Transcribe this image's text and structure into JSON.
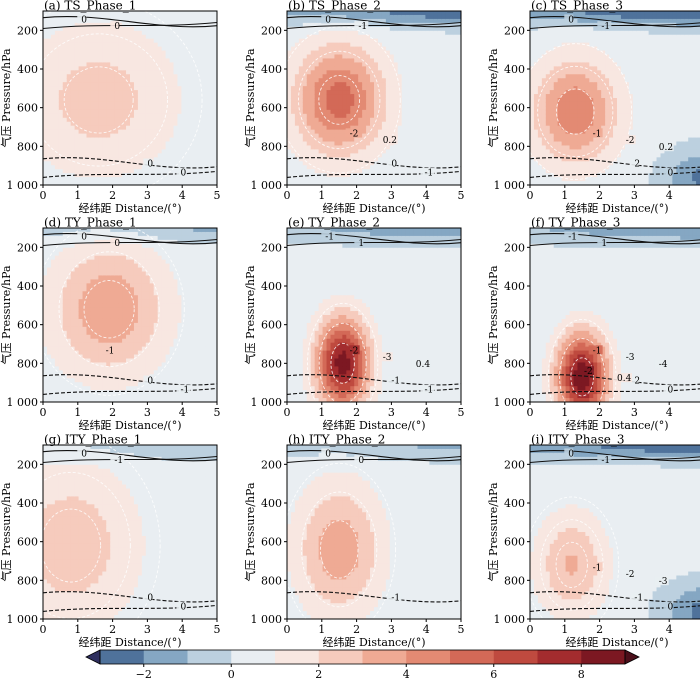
{
  "chart_data": {
    "type": "contour-panels",
    "layout": {
      "rows": 3,
      "cols": 3
    },
    "xlabel": "经纬距 Distance/(°)",
    "ylabel": "气压 Pressure/hPa",
    "xlim": [
      0,
      5
    ],
    "ylim": [
      1000,
      100
    ],
    "x_ticks": [
      "0",
      "1",
      "2",
      "3",
      "4",
      "5"
    ],
    "y_ticks": [
      "200",
      "400",
      "600",
      "800",
      "1 000"
    ],
    "y_tick_values": [
      200,
      400,
      600,
      800,
      1000
    ],
    "colorbar": {
      "levels": [
        -3,
        -2,
        -1,
        0,
        1,
        2,
        3,
        4,
        5,
        6,
        7,
        8,
        9
      ],
      "tick_labels": [
        "−2",
        "0",
        "2",
        "4",
        "6",
        "8"
      ],
      "tick_values": [
        -2,
        0,
        2,
        4,
        6,
        8
      ],
      "colors": [
        "#4f729b",
        "#85a7c3",
        "#bcd0df",
        "#e9eef2",
        "#f8e7e1",
        "#f6cbbd",
        "#efaa94",
        "#e38a73",
        "#d36957",
        "#bf4a3f",
        "#a32c2e",
        "#7c1822"
      ],
      "extend": "both"
    },
    "panels": [
      {
        "title": "(a) TS_Phase_1",
        "cx": 1.6,
        "cy": 560,
        "peak": 2.2,
        "sx": 2.2,
        "sy": 380,
        "neg_top": 0,
        "neg_corner": 0,
        "contour_labels": [
          "0",
          "0",
          "0",
          "0"
        ]
      },
      {
        "title": "(b) TS_Phase_2",
        "cx": 1.5,
        "cy": 560,
        "peak": 5.2,
        "sx": 1.3,
        "sy": 280,
        "neg_top": -3.0,
        "neg_corner": 0,
        "contour_labels": [
          "0",
          "-1",
          "0",
          "-1",
          "-2",
          "0.2"
        ]
      },
      {
        "title": "(c) TS_Phase_3",
        "cx": 1.3,
        "cy": 620,
        "peak": 4.6,
        "sx": 1.2,
        "sy": 260,
        "neg_top": -3.5,
        "neg_corner": -2.5,
        "contour_labels": [
          "0",
          "-1",
          "2",
          "0",
          "-1",
          "-2",
          "0.2"
        ]
      },
      {
        "title": "(d) TY_Phase_1",
        "cx": 1.9,
        "cy": 520,
        "peak": 3.6,
        "sx": 1.6,
        "sy": 330,
        "neg_top": -1.5,
        "neg_corner": 0,
        "contour_labels": [
          "0",
          "0",
          "0",
          "-1",
          "-1"
        ]
      },
      {
        "title": "(e) TY_Phase_2",
        "cx": 1.6,
        "cy": 800,
        "peak": 8.2,
        "sx": 0.75,
        "sy": 230,
        "neg_top": -2.0,
        "neg_corner": 0,
        "contour_labels": [
          "-1",
          "1",
          "-1",
          "-1",
          "-2",
          "-3",
          "0.4"
        ]
      },
      {
        "title": "(f) TY_Phase_3",
        "cx": 1.5,
        "cy": 870,
        "peak": 8.6,
        "sx": 0.72,
        "sy": 220,
        "neg_top": -2.2,
        "neg_corner": 0,
        "contour_labels": [
          "-1",
          "1",
          "2",
          "0",
          "-1",
          "-3",
          "-4",
          "-2",
          "0.4"
        ]
      },
      {
        "title": "(g) ITY_Phase_1",
        "cx": 0.8,
        "cy": 620,
        "peak": 2.4,
        "sx": 1.9,
        "sy": 420,
        "neg_top": -1.2,
        "neg_corner": 0,
        "contour_labels": [
          "0",
          "-1",
          "0",
          "0"
        ]
      },
      {
        "title": "(h) ITY_Phase_2",
        "cx": 1.5,
        "cy": 640,
        "peak": 3.4,
        "sx": 1.2,
        "sy": 330,
        "neg_top": -1.5,
        "neg_corner": 0,
        "contour_labels": [
          "0",
          "0",
          "-1"
        ]
      },
      {
        "title": "(i) ITY_Phase_3",
        "cx": 1.2,
        "cy": 720,
        "peak": 2.8,
        "sx": 1.0,
        "sy": 260,
        "neg_top": -3.2,
        "neg_corner": -2.6,
        "contour_labels": [
          "0",
          "-1",
          "-1",
          "0",
          "-1",
          "-2",
          "-3"
        ]
      }
    ]
  }
}
